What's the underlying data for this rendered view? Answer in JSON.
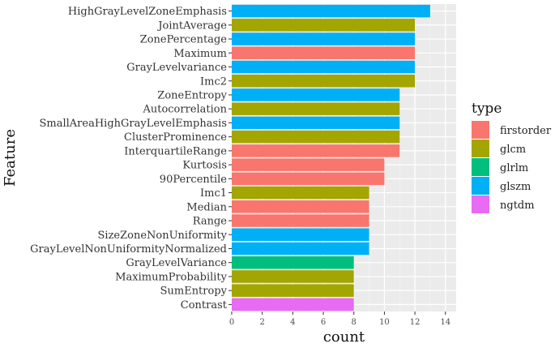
{
  "chart_data": {
    "type": "bar",
    "orientation": "horizontal",
    "xlabel": "count",
    "ylabel": "Feature",
    "xlim": [
      0,
      14.7
    ],
    "xticks": [
      0,
      2,
      4,
      6,
      8,
      10,
      12,
      14
    ],
    "grid": true,
    "legend": {
      "title": "type",
      "position": "right",
      "entries": [
        {
          "name": "firstorder",
          "color": "#F8766D"
        },
        {
          "name": "glcm",
          "color": "#A3A500"
        },
        {
          "name": "glrlm",
          "color": "#00BF7D"
        },
        {
          "name": "glszm",
          "color": "#00B0F6"
        },
        {
          "name": "ngtdm",
          "color": "#E76BF3"
        }
      ]
    },
    "bars": [
      {
        "feature": "HighGrayLevelZoneEmphasis",
        "value": 13,
        "type": "glszm"
      },
      {
        "feature": "JointAverage",
        "value": 12,
        "type": "glcm"
      },
      {
        "feature": "ZonePercentage",
        "value": 12,
        "type": "glszm"
      },
      {
        "feature": "Maximum",
        "value": 12,
        "type": "firstorder"
      },
      {
        "feature": "GrayLevelvariance",
        "value": 12,
        "type": "glszm"
      },
      {
        "feature": "Imc2",
        "value": 12,
        "type": "glcm"
      },
      {
        "feature": "ZoneEntropy",
        "value": 11,
        "type": "glszm"
      },
      {
        "feature": "Autocorrelation",
        "value": 11,
        "type": "glcm"
      },
      {
        "feature": "SmallAreaHighGrayLevelEmphasis",
        "value": 11,
        "type": "glszm"
      },
      {
        "feature": "ClusterProminence",
        "value": 11,
        "type": "glcm"
      },
      {
        "feature": "InterquartileRange",
        "value": 11,
        "type": "firstorder"
      },
      {
        "feature": "Kurtosis",
        "value": 10,
        "type": "firstorder"
      },
      {
        "feature": "90Percentile",
        "value": 10,
        "type": "firstorder"
      },
      {
        "feature": "Imc1",
        "value": 9,
        "type": "glcm"
      },
      {
        "feature": "Median",
        "value": 9,
        "type": "firstorder"
      },
      {
        "feature": "Range",
        "value": 9,
        "type": "firstorder"
      },
      {
        "feature": "SizeZoneNonUniformity",
        "value": 9,
        "type": "glszm"
      },
      {
        "feature": "GrayLevelNonUniformityNormalized",
        "value": 9,
        "type": "glszm"
      },
      {
        "feature": "GrayLevelVariance",
        "value": 8,
        "type": "glrlm"
      },
      {
        "feature": "MaximumProbability",
        "value": 8,
        "type": "glcm"
      },
      {
        "feature": "SumEntropy",
        "value": 8,
        "type": "glcm"
      },
      {
        "feature": "Contrast",
        "value": 8,
        "type": "ngtdm"
      }
    ]
  }
}
